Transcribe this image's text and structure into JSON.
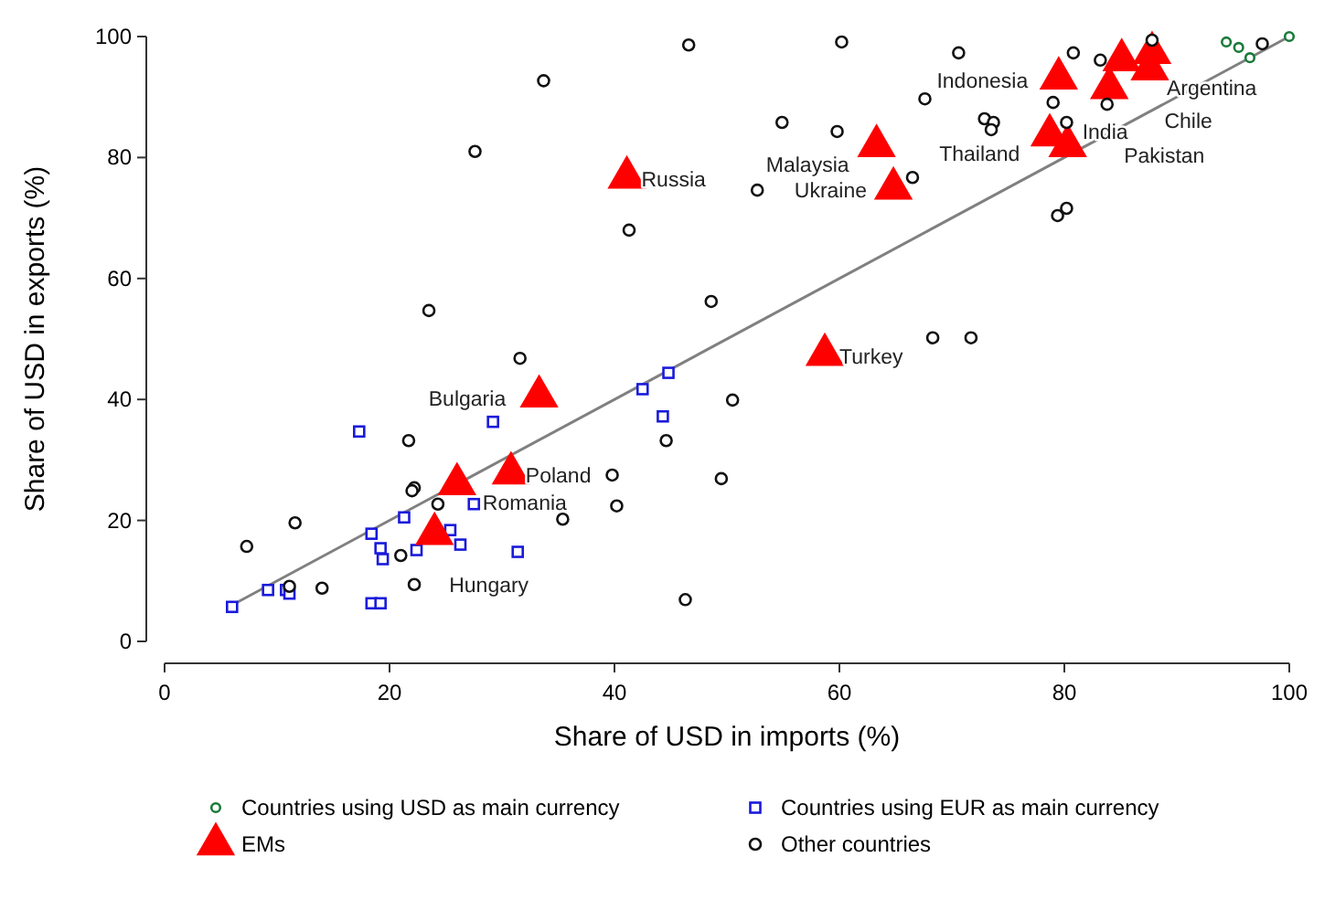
{
  "chart_data": {
    "type": "scatter",
    "xlabel": "Share of USD in imports (%)",
    "ylabel": "Share of USD in exports (%)",
    "xlim": [
      0,
      100
    ],
    "ylim": [
      0,
      100
    ],
    "xticks": [
      0,
      20,
      40,
      60,
      80,
      100
    ],
    "yticks": [
      0,
      20,
      40,
      60,
      80,
      100
    ],
    "legend": "bottom",
    "series": [
      {
        "name": "Countries using USD as main currency",
        "color": "#1a7a3a",
        "marker": "circle",
        "x": [
          94.4,
          95.5,
          96.5,
          100
        ],
        "values": [
          99.1,
          98.2,
          96.5,
          100
        ]
      },
      {
        "name": "Countries using EUR as main currency",
        "color": "#1a1adb",
        "marker": "square",
        "x": [
          6.0,
          9.2,
          10.8,
          11.1,
          17.3,
          18.4,
          19.2,
          19.4,
          18.4,
          19.2,
          21.3,
          22.4,
          25.4,
          26.3,
          27.5,
          29.2,
          31.4,
          44.8,
          42.5,
          44.3
        ],
        "values": [
          5.7,
          8.5,
          8.5,
          7.9,
          34.7,
          17.8,
          15.4,
          13.6,
          6.3,
          6.3,
          20.5,
          15.1,
          18.4,
          16.0,
          22.7,
          36.3,
          14.8,
          44.4,
          41.7,
          37.2
        ]
      },
      {
        "name": "EMs",
        "color": "#ff0000",
        "marker": "triangle",
        "x": [
          41.1,
          63.3,
          64.8,
          58.7,
          33.3,
          30.8,
          26.0,
          24.0,
          79.5,
          78.7,
          80.3,
          85.1,
          84.0,
          87.6,
          87.8
        ],
        "values": [
          76.7,
          81.9,
          74.9,
          47.4,
          40.5,
          27.8,
          26.0,
          17.8,
          93.1,
          83.7,
          81.9,
          96.1,
          91.5,
          94.6,
          97.3
        ]
      },
      {
        "name": "Other countries",
        "color": "#111111",
        "marker": "circle",
        "x": [
          23.5,
          31.6,
          21.7,
          22.2,
          22.0,
          24.3,
          11.6,
          7.3,
          21.0,
          22.2,
          11.1,
          14.0,
          35.4,
          48.6,
          50.5,
          44.6,
          39.8,
          40.2,
          49.5,
          46.3,
          68.3,
          71.7,
          33.7,
          46.6,
          60.2,
          70.6,
          67.6,
          72.9,
          73.7,
          73.5,
          54.9,
          59.8,
          52.7,
          66.5,
          41.3,
          27.6,
          80.8,
          83.2,
          87.8,
          97.6,
          79.0,
          83.8,
          80.2,
          79.4,
          80.2
        ],
        "values": [
          54.7,
          46.8,
          33.2,
          25.4,
          24.9,
          22.7,
          19.6,
          15.7,
          14.2,
          9.4,
          9.1,
          8.8,
          20.2,
          56.2,
          39.9,
          33.2,
          27.5,
          22.4,
          26.9,
          6.9,
          50.2,
          50.2,
          92.7,
          98.6,
          99.1,
          97.3,
          89.7,
          86.4,
          85.8,
          84.6,
          85.8,
          84.3,
          74.6,
          76.7,
          68.0,
          81.0,
          97.3,
          96.1,
          99.4,
          98.8,
          89.1,
          88.8,
          85.8,
          70.4,
          71.6
        ]
      },
      {
        "type": "line",
        "color": "#808080",
        "x": [
          6,
          100
        ],
        "values": [
          6,
          100
        ]
      }
    ],
    "annotations": [
      {
        "text": "Russia",
        "x": 41.1,
        "y": 76.7
      },
      {
        "text": "Malaysia",
        "x": 63.3,
        "y": 81.9
      },
      {
        "text": "Ukraine",
        "x": 64.8,
        "y": 74.9
      },
      {
        "text": "Turkey",
        "x": 58.7,
        "y": 47.4
      },
      {
        "text": "Bulgaria",
        "x": 33.3,
        "y": 40.5
      },
      {
        "text": "Poland",
        "x": 30.8,
        "y": 27.8
      },
      {
        "text": "Romania",
        "x": 26.0,
        "y": 26.0
      },
      {
        "text": "Hungary",
        "x": 24.0,
        "y": 17.8
      },
      {
        "text": "Indonesia",
        "x": 79.5,
        "y": 93.1
      },
      {
        "text": "Thailand",
        "x": 78.7,
        "y": 83.7
      },
      {
        "text": "India",
        "x": 80.3,
        "y": 81.9
      },
      {
        "text": "Pakistan",
        "x": 84.0,
        "y": 91.5
      },
      {
        "text": "Chile",
        "x": 87.6,
        "y": 94.6
      },
      {
        "text": "Argentina",
        "x": 87.8,
        "y": 97.3
      }
    ]
  }
}
